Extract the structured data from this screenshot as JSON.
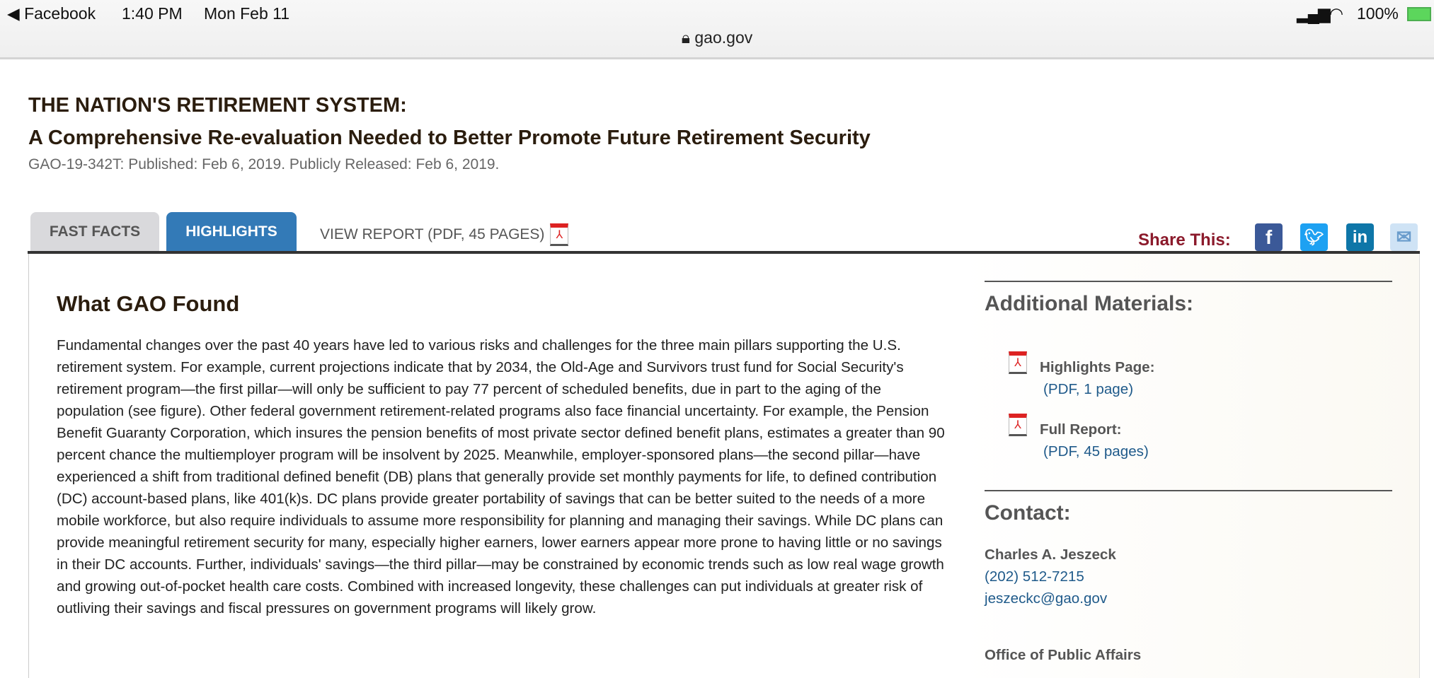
{
  "status_bar": {
    "back_app": "◀ Facebook",
    "time": "1:40 PM",
    "date": "Mon Feb 11",
    "battery": "100%"
  },
  "browser": {
    "url": "gao.gov"
  },
  "header": {
    "title": "THE NATION'S RETIREMENT SYSTEM:",
    "subtitle": "A Comprehensive Re-evaluation Needed to Better Promote Future Retirement Security",
    "meta": "GAO-19-342T: Published: Feb 6, 2019. Publicly Released: Feb 6, 2019."
  },
  "tabs": [
    {
      "label": "FAST FACTS"
    },
    {
      "label": "HIGHLIGHTS",
      "active": true
    },
    {
      "label": "VIEW REPORT (PDF, 45 PAGES)"
    }
  ],
  "share": {
    "label": "Share This:",
    "icons": [
      "facebook-icon",
      "twitter-icon",
      "linkedin-icon",
      "email-icon"
    ]
  },
  "colors": {
    "active_tab": "#337ab7",
    "share_label": "#8b1a2b",
    "link": "#1f5a8a"
  },
  "main": {
    "heading": "What GAO Found",
    "body": "Fundamental changes over the past 40 years have led to various risks and challenges for the three main pillars supporting the U.S. retirement system. For example, current projections indicate that by 2034, the Old-Age and Survivors trust fund for Social Security's retirement program—the first pillar—will only be sufficient to pay 77 percent of scheduled benefits, due in part to the aging of the population (see figure). Other federal government retirement-related programs also face financial uncertainty. For example, the Pension Benefit Guaranty Corporation, which insures the pension benefits of most private sector defined benefit plans, estimates a greater than 90 percent chance the multiemployer program will be insolvent by 2025. Meanwhile, employer-sponsored plans—the second pillar—have experienced a shift from traditional defined benefit (DB) plans that generally provide set monthly payments for life, to defined contribution (DC) account-based plans, like 401(k)s. DC plans provide greater portability of savings that can be better suited to the needs of a more mobile workforce, but also require individuals to assume more responsibility for planning and managing their savings. While DC plans can provide meaningful retirement security for many, especially higher earners, lower earners appear more prone to having little or no savings in their DC accounts. Further, individuals' savings—the third pillar—may be constrained by economic trends such as low real wage growth and growing out-of-pocket health care costs. Combined with increased longevity, these challenges can put individuals at greater risk of outliving their savings and fiscal pressures on government programs will likely grow."
  },
  "sidebar": {
    "materials_heading": "Additional Materials:",
    "materials": [
      {
        "label": "Highlights Page:",
        "link": "(PDF, 1 page)"
      },
      {
        "label": "Full Report:",
        "link": "(PDF, 45 pages)"
      }
    ],
    "contact_heading": "Contact:",
    "contact_name": "Charles A. Jeszeck",
    "phone": "(202) 512-7215",
    "email": "jeszeckc@gao.gov",
    "office": "Office of Public Affairs"
  }
}
